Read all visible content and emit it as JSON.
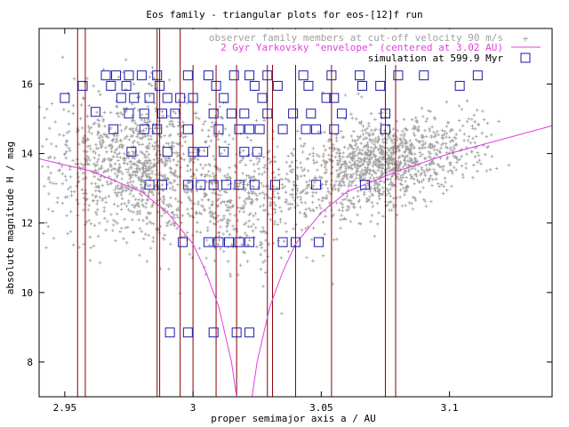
{
  "chart_data": {
    "type": "scatter",
    "title": "Eos family - triangular plots for eos-[12]f run",
    "xlabel": "proper semimajor axis a / AU",
    "ylabel": "absolute magnitude H / mag",
    "xlim": [
      2.94,
      3.14
    ],
    "ylim": [
      7.0,
      17.6
    ],
    "x_ticks": [
      2.95,
      3.0,
      3.05,
      3.1
    ],
    "x_tick_labels": [
      "2.95",
      "3",
      "3.05",
      "3.1"
    ],
    "y_ticks": [
      8,
      10,
      12,
      14,
      16
    ],
    "y_tick_labels": [
      "8",
      "10",
      "12",
      "14",
      "16"
    ],
    "grid": false,
    "legend_position": "top-right",
    "colors": {
      "observed": "#a0a0a0",
      "envelope": "#e040e0",
      "simulation": "#1a1aa8",
      "resonance": "#8b0000",
      "text": "#000000"
    },
    "series": [
      {
        "name": "observer family members at cut-off velocity 90 m/s",
        "kind": "points",
        "clusters": [
          {
            "x_center": 2.978,
            "x_spread": 0.018,
            "y_center": 13.6,
            "y_spread": 1.0,
            "count": 1100
          },
          {
            "x_center": 3.015,
            "x_spread": 0.01,
            "y_center": 12.4,
            "y_spread": 0.9,
            "count": 250
          },
          {
            "x_center": 3.04,
            "x_spread": 0.015,
            "y_center": 13.0,
            "y_spread": 0.8,
            "count": 300
          },
          {
            "x_center": 3.072,
            "x_spread": 0.012,
            "y_center": 13.7,
            "y_spread": 0.6,
            "count": 800
          },
          {
            "x_center": 3.095,
            "x_spread": 0.012,
            "y_center": 14.3,
            "y_spread": 0.5,
            "count": 250
          }
        ]
      },
      {
        "name": "2 Gyr Yarkovsky \"envelope\" (centered at 3.02 AU)",
        "kind": "envelope",
        "x_center": 3.02,
        "points_left": [
          [
            2.94,
            13.85
          ],
          [
            2.96,
            13.5
          ],
          [
            2.98,
            12.9
          ],
          [
            2.99,
            12.3
          ],
          [
            3.0,
            11.4
          ],
          [
            3.005,
            10.6
          ],
          [
            3.01,
            9.6
          ],
          [
            3.015,
            8.0
          ],
          [
            3.017,
            7.0
          ]
        ],
        "points_right": [
          [
            3.023,
            7.0
          ],
          [
            3.025,
            8.0
          ],
          [
            3.03,
            9.6
          ],
          [
            3.035,
            10.6
          ],
          [
            3.04,
            11.4
          ],
          [
            3.05,
            12.3
          ],
          [
            3.06,
            12.9
          ],
          [
            3.08,
            13.5
          ],
          [
            3.1,
            14.0
          ],
          [
            3.12,
            14.4
          ],
          [
            3.14,
            14.8
          ]
        ]
      },
      {
        "name": "simulation at 599.9 Myr",
        "kind": "boxes",
        "points": [
          [
            2.95,
            15.6
          ],
          [
            2.957,
            15.95
          ],
          [
            2.962,
            15.2
          ],
          [
            2.966,
            16.25
          ],
          [
            2.97,
            16.25
          ],
          [
            2.975,
            16.25
          ],
          [
            2.98,
            16.25
          ],
          [
            2.986,
            16.25
          ],
          [
            2.998,
            16.25
          ],
          [
            3.006,
            16.25
          ],
          [
            3.016,
            16.25
          ],
          [
            3.022,
            16.25
          ],
          [
            3.029,
            16.25
          ],
          [
            3.033,
            15.95
          ],
          [
            3.043,
            16.25
          ],
          [
            3.054,
            16.25
          ],
          [
            3.065,
            16.25
          ],
          [
            3.073,
            15.95
          ],
          [
            3.08,
            16.25
          ],
          [
            3.09,
            16.25
          ],
          [
            3.104,
            15.95
          ],
          [
            3.111,
            16.25
          ],
          [
            2.968,
            15.95
          ],
          [
            2.974,
            15.95
          ],
          [
            2.987,
            15.95
          ],
          [
            3.009,
            15.95
          ],
          [
            3.024,
            15.95
          ],
          [
            3.045,
            15.95
          ],
          [
            3.066,
            15.95
          ],
          [
            2.972,
            15.6
          ],
          [
            2.977,
            15.6
          ],
          [
            2.983,
            15.6
          ],
          [
            2.99,
            15.6
          ],
          [
            2.995,
            15.6
          ],
          [
            3.0,
            15.6
          ],
          [
            3.012,
            15.6
          ],
          [
            3.027,
            15.6
          ],
          [
            3.052,
            15.6
          ],
          [
            3.055,
            15.6
          ],
          [
            2.975,
            15.15
          ],
          [
            2.981,
            15.15
          ],
          [
            2.988,
            15.15
          ],
          [
            2.993,
            15.15
          ],
          [
            3.008,
            15.15
          ],
          [
            3.015,
            15.15
          ],
          [
            3.02,
            15.15
          ],
          [
            3.029,
            15.15
          ],
          [
            3.039,
            15.15
          ],
          [
            3.046,
            15.15
          ],
          [
            3.058,
            15.15
          ],
          [
            3.075,
            15.15
          ],
          [
            2.969,
            14.7
          ],
          [
            2.981,
            14.7
          ],
          [
            2.986,
            14.7
          ],
          [
            2.998,
            14.7
          ],
          [
            3.01,
            14.7
          ],
          [
            3.018,
            14.7
          ],
          [
            3.022,
            14.7
          ],
          [
            3.026,
            14.7
          ],
          [
            3.035,
            14.7
          ],
          [
            3.044,
            14.7
          ],
          [
            3.048,
            14.7
          ],
          [
            3.055,
            14.7
          ],
          [
            3.075,
            14.7
          ],
          [
            2.976,
            14.05
          ],
          [
            2.99,
            14.05
          ],
          [
            3.0,
            14.05
          ],
          [
            3.004,
            14.05
          ],
          [
            3.012,
            14.05
          ],
          [
            3.02,
            14.05
          ],
          [
            3.025,
            14.05
          ],
          [
            2.983,
            13.1
          ],
          [
            2.988,
            13.1
          ],
          [
            2.998,
            13.1
          ],
          [
            3.003,
            13.1
          ],
          [
            3.008,
            13.1
          ],
          [
            3.013,
            13.1
          ],
          [
            3.018,
            13.1
          ],
          [
            3.024,
            13.1
          ],
          [
            3.032,
            13.1
          ],
          [
            3.048,
            13.1
          ],
          [
            3.067,
            13.1
          ],
          [
            2.996,
            11.45
          ],
          [
            3.006,
            11.45
          ],
          [
            3.01,
            11.45
          ],
          [
            3.014,
            11.45
          ],
          [
            3.018,
            11.45
          ],
          [
            3.022,
            11.45
          ],
          [
            3.035,
            11.45
          ],
          [
            3.04,
            11.45
          ],
          [
            3.049,
            11.45
          ],
          [
            2.991,
            8.85
          ],
          [
            2.998,
            8.85
          ],
          [
            3.008,
            8.85
          ],
          [
            3.017,
            8.85
          ],
          [
            3.022,
            8.85
          ]
        ]
      }
    ],
    "vertical_lines_x": [
      2.955,
      2.958,
      2.986,
      2.987,
      2.995,
      3.0,
      3.009,
      3.017,
      3.029,
      3.031,
      3.04,
      3.054,
      3.075,
      3.079
    ]
  }
}
